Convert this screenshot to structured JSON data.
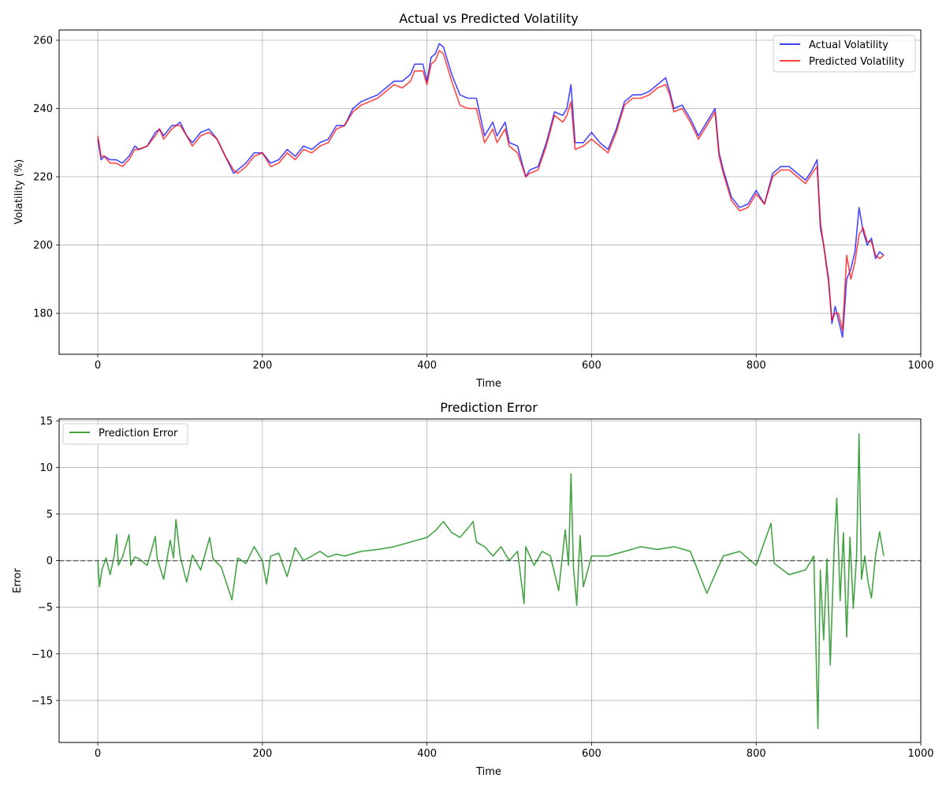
{
  "chart_data": [
    {
      "type": "line",
      "title": "Actual vs Predicted Volatility",
      "xlabel": "Time",
      "ylabel": "Volatility (%)",
      "xlim": [
        -47,
        1000
      ],
      "ylim": [
        168,
        263
      ],
      "xticks": [
        0,
        200,
        400,
        600,
        800,
        1000
      ],
      "yticks": [
        180,
        200,
        220,
        240,
        260
      ],
      "grid": true,
      "legend": "top-right",
      "series": [
        {
          "name": "Actual Volatility",
          "color": "#0000ff",
          "x": [
            0,
            4,
            8,
            15,
            22,
            30,
            38,
            45,
            50,
            60,
            70,
            75,
            80,
            90,
            95,
            100,
            108,
            115,
            125,
            135,
            145,
            155,
            165,
            170,
            180,
            190,
            200,
            210,
            220,
            230,
            240,
            250,
            260,
            270,
            280,
            290,
            300,
            310,
            320,
            330,
            340,
            350,
            360,
            370,
            380,
            385,
            395,
            400,
            405,
            410,
            415,
            420,
            430,
            440,
            450,
            460,
            470,
            480,
            485,
            495,
            500,
            510,
            520,
            525,
            535,
            545,
            555,
            565,
            570,
            575,
            580,
            590,
            600,
            610,
            620,
            630,
            640,
            650,
            660,
            670,
            680,
            690,
            695,
            700,
            710,
            720,
            730,
            740,
            750,
            755,
            760,
            770,
            780,
            790,
            800,
            810,
            820,
            830,
            840,
            850,
            860,
            868,
            874,
            878,
            882,
            888,
            892,
            896,
            900,
            905,
            910,
            915,
            920,
            925,
            930,
            935,
            940,
            945,
            950,
            955
          ],
          "values": [
            231,
            225,
            226,
            225,
            225,
            224,
            226,
            229,
            228,
            229,
            233,
            234,
            232,
            235,
            235,
            236,
            232,
            230,
            233,
            234,
            231,
            226,
            221,
            222,
            224,
            227,
            227,
            224,
            225,
            228,
            226,
            229,
            228,
            230,
            231,
            235,
            235,
            240,
            242,
            243,
            244,
            246,
            248,
            248,
            250,
            253,
            253,
            248,
            255,
            256,
            259,
            258,
            250,
            244,
            243,
            243,
            232,
            236,
            232,
            236,
            230,
            229,
            220,
            222,
            223,
            230,
            239,
            238,
            240,
            247,
            230,
            230,
            233,
            230,
            228,
            234,
            242,
            244,
            244,
            245,
            247,
            249,
            245,
            240,
            241,
            237,
            232,
            236,
            240,
            227,
            222,
            214,
            211,
            212,
            216,
            212,
            221,
            223,
            223,
            221,
            219,
            222,
            225,
            205,
            200,
            190,
            177,
            182,
            178,
            173,
            190,
            193,
            198,
            211,
            204,
            200,
            202,
            196,
            198,
            197
          ]
        },
        {
          "name": "Predicted Volatility",
          "color": "#ff0000",
          "x": [
            0,
            4,
            8,
            15,
            22,
            30,
            38,
            45,
            50,
            60,
            70,
            75,
            80,
            90,
            95,
            100,
            108,
            115,
            125,
            135,
            145,
            155,
            165,
            170,
            180,
            190,
            200,
            210,
            220,
            230,
            240,
            250,
            260,
            270,
            280,
            290,
            300,
            310,
            320,
            330,
            340,
            350,
            360,
            370,
            380,
            385,
            395,
            400,
            405,
            410,
            415,
            420,
            430,
            440,
            450,
            460,
            470,
            480,
            485,
            495,
            500,
            510,
            520,
            525,
            535,
            545,
            555,
            565,
            570,
            575,
            580,
            590,
            600,
            610,
            620,
            630,
            640,
            650,
            660,
            670,
            680,
            690,
            695,
            700,
            710,
            720,
            730,
            740,
            750,
            755,
            760,
            770,
            780,
            790,
            800,
            810,
            820,
            830,
            840,
            850,
            860,
            868,
            874,
            878,
            882,
            888,
            892,
            896,
            900,
            905,
            910,
            915,
            920,
            925,
            930,
            935,
            940,
            945,
            950,
            955
          ],
          "values": [
            232,
            226,
            226,
            224,
            224,
            223,
            225,
            228,
            228,
            229,
            232,
            234,
            231,
            234,
            235,
            235,
            232,
            229,
            232,
            233,
            231,
            226,
            222,
            221,
            223,
            226,
            227,
            223,
            224,
            227,
            225,
            228,
            227,
            229,
            230,
            234,
            235,
            239,
            241,
            242,
            243,
            245,
            247,
            246,
            248,
            251,
            251,
            247,
            253,
            254,
            257,
            256,
            248,
            241,
            240,
            240,
            230,
            234,
            230,
            234,
            229,
            227,
            220,
            221,
            222,
            229,
            238,
            236,
            238,
            242,
            228,
            229,
            231,
            229,
            227,
            233,
            241,
            243,
            243,
            244,
            246,
            247,
            244,
            239,
            240,
            236,
            231,
            235,
            239,
            226,
            221,
            213,
            210,
            211,
            215,
            212,
            220,
            222,
            222,
            220,
            218,
            221,
            223,
            207,
            200,
            189,
            178,
            180,
            180,
            175,
            197,
            190,
            195,
            203,
            205,
            201,
            201,
            197,
            196,
            197
          ]
        }
      ]
    },
    {
      "type": "line",
      "title": "Prediction Error",
      "xlabel": "Time",
      "ylabel": "Error",
      "xlim": [
        -47,
        1000
      ],
      "ylim": [
        -19.5,
        15.2
      ],
      "xticks": [
        0,
        200,
        400,
        600,
        800,
        1000
      ],
      "yticks": [
        -15,
        -10,
        -5,
        0,
        5,
        10,
        15
      ],
      "grid": true,
      "legend": "top-left",
      "reference_line": 0,
      "series": [
        {
          "name": "Prediction Error",
          "color": "#008000",
          "x": [
            0,
            2,
            5,
            10,
            15,
            20,
            23,
            25,
            30,
            38,
            40,
            45,
            50,
            60,
            70,
            72,
            80,
            88,
            92,
            95,
            100,
            108,
            115,
            125,
            136,
            140,
            150,
            163,
            170,
            180,
            190,
            200,
            205,
            210,
            220,
            230,
            240,
            250,
            260,
            270,
            280,
            290,
            300,
            320,
            340,
            360,
            380,
            400,
            410,
            420,
            430,
            440,
            450,
            456,
            460,
            470,
            480,
            490,
            500,
            510,
            518,
            520,
            530,
            540,
            550,
            560,
            568,
            572,
            575,
            578,
            582,
            586,
            590,
            600,
            620,
            640,
            660,
            680,
            700,
            720,
            740,
            760,
            780,
            800,
            818,
            822,
            840,
            860,
            870,
            875,
            878,
            882,
            886,
            890,
            895,
            898,
            902,
            906,
            910,
            914,
            918,
            922,
            925,
            928,
            932,
            936,
            940,
            945,
            950,
            955
          ],
          "values": [
            0,
            -2.8,
            -1,
            0.3,
            -1.5,
            0.5,
            2.8,
            -0.5,
            0.4,
            2.8,
            -0.5,
            0.4,
            0.2,
            -0.5,
            2.6,
            0.3,
            -2,
            2.2,
            0.3,
            4.4,
            0.5,
            -2.3,
            0.6,
            -1,
            2.5,
            0.2,
            -0.7,
            -4.2,
            0.3,
            -0.3,
            1.5,
            0,
            -2.5,
            0.5,
            0.8,
            -1.7,
            1.4,
            0,
            0.5,
            1,
            0.4,
            0.7,
            0.5,
            1,
            1.2,
            1.5,
            2,
            2.5,
            3.2,
            4.2,
            3,
            2.5,
            3.5,
            4.2,
            2,
            1.5,
            0.5,
            1.5,
            0,
            1,
            -4.6,
            1.5,
            -0.5,
            1,
            0.5,
            -3.2,
            3.3,
            -0.5,
            9.3,
            -0.8,
            -4.8,
            2.7,
            -2.8,
            0.5,
            0.5,
            1,
            1.5,
            1.2,
            1.5,
            1,
            -3.5,
            0.5,
            1,
            -0.5,
            4,
            -0.3,
            -1.5,
            -1,
            0.5,
            -18,
            -1,
            -8.5,
            0.2,
            -11.2,
            2,
            6.7,
            -4.3,
            3,
            -8.2,
            2.5,
            -5.1,
            0.5,
            13.6,
            -2,
            0.5,
            -2.3,
            -4,
            0.5,
            3.1,
            0.5
          ]
        }
      ]
    }
  ]
}
